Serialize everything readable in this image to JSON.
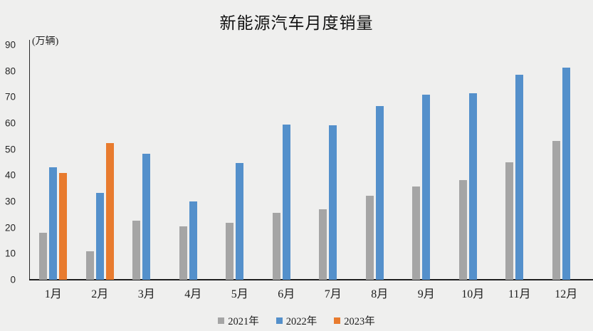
{
  "title": "新能源汽车月度销量",
  "chart_data": {
    "type": "bar",
    "title": "新能源汽车月度销量",
    "ylabel": "(万辆)",
    "xlabel": "",
    "categories": [
      "1月",
      "2月",
      "3月",
      "4月",
      "5月",
      "6月",
      "7月",
      "8月",
      "9月",
      "10月",
      "11月",
      "12月"
    ],
    "series": [
      {
        "name": "2021年",
        "color": "#a5a5a5",
        "values": [
          17.9,
          11.0,
          22.6,
          20.6,
          21.7,
          25.6,
          27.1,
          32.1,
          35.7,
          38.3,
          45.0,
          53.1
        ]
      },
      {
        "name": "2022年",
        "color": "#5490cb",
        "values": [
          43.1,
          33.4,
          48.4,
          29.9,
          44.7,
          59.6,
          59.3,
          66.6,
          70.8,
          71.4,
          78.6,
          81.4
        ]
      },
      {
        "name": "2023年",
        "color": "#e87b2e",
        "values": [
          40.8,
          52.5,
          null,
          null,
          null,
          null,
          null,
          null,
          null,
          null,
          null,
          null
        ]
      }
    ],
    "ylim": [
      0,
      90
    ],
    "yticks": [
      0,
      10,
      20,
      30,
      40,
      50,
      60,
      70,
      80,
      90
    ],
    "grid": false,
    "legend_position": "bottom"
  }
}
